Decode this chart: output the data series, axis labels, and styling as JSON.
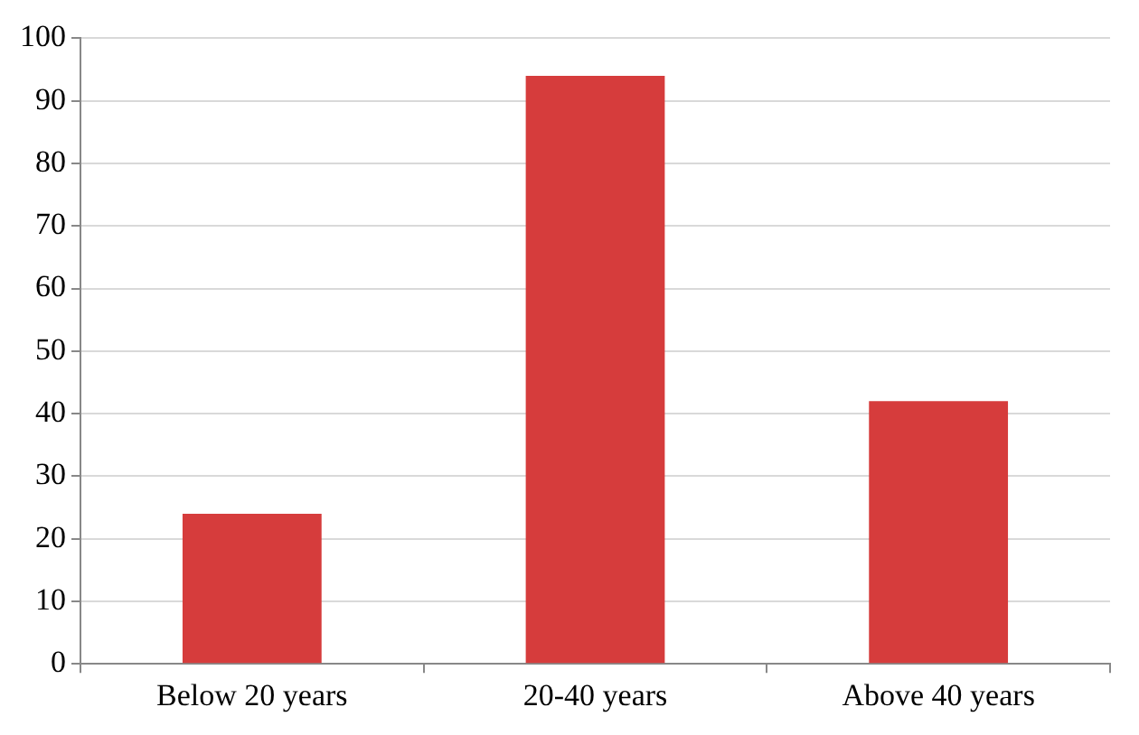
{
  "chart_data": {
    "type": "bar",
    "categories": [
      "Below 20 years",
      "20-40 years",
      "Above 40 years"
    ],
    "values": [
      24,
      94,
      42
    ],
    "color": "#d63c3c",
    "ylim": [
      0,
      100
    ],
    "yticks": [
      0,
      10,
      20,
      30,
      40,
      50,
      60,
      70,
      80,
      90,
      100
    ],
    "grid": "y"
  }
}
